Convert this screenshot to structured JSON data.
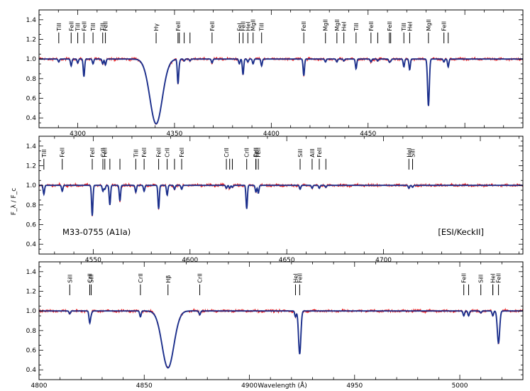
{
  "chart_data": {
    "type": "line",
    "title": "",
    "xlabel": "Wavelength (Å)",
    "ylabel": "F_λ / F_c",
    "object_label": "M33-0755 (A1Ia)",
    "instrument_label": "[ESI/KeckII]",
    "ylim": [
      0.3,
      1.5
    ],
    "yticks": [
      "0.4",
      "0.6",
      "0.8",
      "1.0",
      "1.2",
      "1.4"
    ],
    "series": [
      {
        "name": "",
        "color": "#ee1111",
        "role": "observed"
      },
      {
        "name": "",
        "color": "#1b2f8c",
        "role": "model"
      }
    ],
    "panels": [
      {
        "xlim": [
          4280,
          4530
        ],
        "xticks": [
          4300,
          4350,
          4400,
          4450
        ],
        "lines": [
          {
            "label": "TiII",
            "wl": 4290.2,
            "d": 0.03
          },
          {
            "label": "FeII",
            "wl": 4296.6,
            "d": 0.07
          },
          {
            "label": "TiII",
            "wl": 4300.0,
            "d": 0.04
          },
          {
            "label": "FeII",
            "wl": 4303.2,
            "d": 0.18
          },
          {
            "label": "TiII",
            "wl": 4307.9,
            "d": 0.05
          },
          {
            "label": "TiII",
            "wl": 4312.9,
            "d": 0.05
          },
          {
            "label": "FeII",
            "wl": 4314.3,
            "d": 0.06
          },
          {
            "label": "Hγ",
            "wl": 4340.5,
            "d": 0.66,
            "w": 3.2
          },
          {
            "label": "FeII",
            "wl": 4351.8,
            "d": 0.25
          },
          {
            "label": "",
            "wl": 4352.5,
            "d": 0.03
          },
          {
            "label": "",
            "wl": 4355.0,
            "d": 0.02
          },
          {
            "label": "",
            "wl": 4358.0,
            "d": 0.02
          },
          {
            "label": "FeII",
            "wl": 4369.4,
            "d": 0.04
          },
          {
            "label": "FeI",
            "wl": 4383.5,
            "d": 0.05
          },
          {
            "label": "FeII",
            "wl": 4385.4,
            "d": 0.16
          },
          {
            "label": "HeI",
            "wl": 4387.9,
            "d": 0.03
          },
          {
            "label": "MgII",
            "wl": 4390.6,
            "d": 0.05
          },
          {
            "label": "TiII",
            "wl": 4395.0,
            "d": 0.07
          },
          {
            "label": "FeII",
            "wl": 4416.8,
            "d": 0.17
          },
          {
            "label": "MgII",
            "wl": 4428.0,
            "d": 0.03
          },
          {
            "label": "MgII",
            "wl": 4433.9,
            "d": 0.03
          },
          {
            "label": "HeI",
            "wl": 4437.5,
            "d": 0.02
          },
          {
            "label": "TiII",
            "wl": 4443.8,
            "d": 0.1
          },
          {
            "label": "FeII",
            "wl": 4451.5,
            "d": 0.03
          },
          {
            "label": "",
            "wl": 4455.0,
            "d": 0.02
          },
          {
            "label": "FeII",
            "wl": 4461.0,
            "d": 0.03
          },
          {
            "label": "",
            "wl": 4461.7,
            "d": 0.02
          },
          {
            "label": "TiII",
            "wl": 4468.5,
            "d": 0.08
          },
          {
            "label": "HeI",
            "wl": 4471.5,
            "d": 0.11
          },
          {
            "label": "MgII",
            "wl": 4481.2,
            "d": 0.48,
            "w": 0.45
          },
          {
            "label": "FeII",
            "wl": 4489.2,
            "d": 0.03
          },
          {
            "label": "",
            "wl": 4491.4,
            "d": 0.08
          }
        ]
      },
      {
        "xlim": [
          4522,
          4772
        ],
        "xticks": [
          4550,
          4600,
          4650,
          4700
        ],
        "lines": [
          {
            "label": "TiII",
            "wl": 4524.5,
            "d": 0.09
          },
          {
            "label": "FeII",
            "wl": 4534.0,
            "d": 0.06
          },
          {
            "label": "FeII",
            "wl": 4549.5,
            "d": 0.31
          },
          {
            "label": "CrII",
            "wl": 4555.0,
            "d": 0.06
          },
          {
            "label": "FeII",
            "wl": 4556.0,
            "d": 0.04
          },
          {
            "label": "",
            "wl": 4558.6,
            "d": 0.2
          },
          {
            "label": "",
            "wl": 4563.8,
            "d": 0.16
          },
          {
            "label": "TiII",
            "wl": 4572.0,
            "d": 0.07
          },
          {
            "label": "FeII",
            "wl": 4576.3,
            "d": 0.06
          },
          {
            "label": "FeII",
            "wl": 4583.8,
            "d": 0.24
          },
          {
            "label": "CrII",
            "wl": 4588.2,
            "d": 0.1
          },
          {
            "label": "",
            "wl": 4592.0,
            "d": 0.04
          },
          {
            "label": "FeII",
            "wl": 4595.7,
            "d": 0.04
          },
          {
            "label": "CrII",
            "wl": 4618.8,
            "d": 0.03
          },
          {
            "label": "",
            "wl": 4620.5,
            "d": 0.03
          },
          {
            "label": "",
            "wl": 4621.9,
            "d": 0.02
          },
          {
            "label": "CrII",
            "wl": 4629.3,
            "d": 0.24
          },
          {
            "label": "FeII",
            "wl": 4634.0,
            "d": 0.04
          },
          {
            "label": "CrII",
            "wl": 4634.1,
            "d": 0.03
          },
          {
            "label": "FeII",
            "wl": 4635.3,
            "d": 0.08
          },
          {
            "label": "SiII",
            "wl": 4656.9,
            "d": 0.04
          },
          {
            "label": "AlII",
            "wl": 4663.1,
            "d": 0.03
          },
          {
            "label": "FeII",
            "wl": 4666.8,
            "d": 0.03
          },
          {
            "label": "",
            "wl": 4670.2,
            "d": 0.02
          },
          {
            "label": "HeI",
            "wl": 4713.1,
            "d": 0.03
          },
          {
            "label": "SiII",
            "wl": 4715.0,
            "d": 0.02
          }
        ]
      },
      {
        "xlim": [
          4800,
          5030
        ],
        "xticks": [
          4800,
          4850,
          4900,
          4950,
          5000
        ],
        "lines": [
          {
            "label": "SiII",
            "wl": 4814.6,
            "d": 0.03
          },
          {
            "label": "CrII",
            "wl": 4824.1,
            "d": 0.12
          },
          {
            "label": "SiII",
            "wl": 4824.8,
            "d": 0.03
          },
          {
            "label": "CrII",
            "wl": 4848.2,
            "d": 0.06
          },
          {
            "label": "Hβ",
            "wl": 4861.3,
            "d": 0.58,
            "w": 2.8
          },
          {
            "label": "CrII",
            "wl": 4876.4,
            "d": 0.04
          },
          {
            "label": "HeI",
            "wl": 4921.9,
            "d": 0.06
          },
          {
            "label": "FeII",
            "wl": 4923.9,
            "d": 0.44,
            "w": 0.55
          },
          {
            "label": "FeII",
            "wl": 5001.9,
            "d": 0.05
          },
          {
            "label": "",
            "wl": 5004.2,
            "d": 0.05
          },
          {
            "label": "SiII",
            "wl": 5010.0,
            "d": 0.02
          },
          {
            "label": "",
            "wl": 5015.7,
            "d": 0.02
          },
          {
            "label": "HeI",
            "wl": 5015.7,
            "d": 0.03
          },
          {
            "label": "FeII",
            "wl": 5018.4,
            "d": 0.33,
            "w": 0.55
          }
        ]
      }
    ]
  }
}
